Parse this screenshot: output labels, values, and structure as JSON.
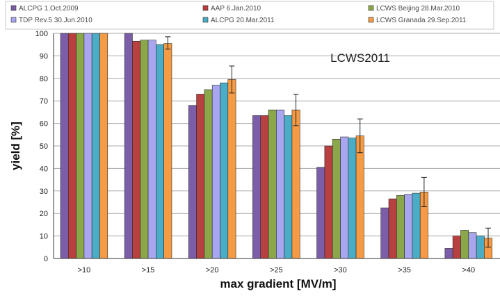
{
  "chart_data": {
    "type": "bar",
    "title": "",
    "xlabel": "max gradient [MV/m]",
    "ylabel": "yield [%]",
    "ylim": [
      0,
      100
    ],
    "y_ticks": [
      0,
      10,
      20,
      30,
      40,
      50,
      60,
      70,
      80,
      90,
      100
    ],
    "grid": true,
    "legend_position": "top",
    "annotation": "LCWS2011",
    "categories": [
      ">10",
      ">15",
      ">20",
      ">25",
      ">30",
      ">35",
      ">40"
    ],
    "series": [
      {
        "name": "ALCPG 1.Oct.2009",
        "color": "#7b5ea7",
        "values": [
          100,
          100,
          68,
          63.5,
          40.5,
          22.5,
          4.5
        ]
      },
      {
        "name": "AAP 6.Jan.2010",
        "color": "#b84040",
        "values": [
          100,
          96.5,
          73,
          63.5,
          50,
          26.5,
          10
        ]
      },
      {
        "name": "LCWS Beijing 28.Mar.2010",
        "color": "#8aa84a",
        "values": [
          100,
          97,
          75,
          66,
          53,
          28,
          12.5
        ]
      },
      {
        "name": "TDP Rev.5 30.Jun.2010",
        "color": "#a9a6ef",
        "values": [
          100,
          97,
          77,
          66,
          54,
          28.5,
          11.5
        ]
      },
      {
        "name": "ALCPG 20.Mar.2011",
        "color": "#4bacc6",
        "values": [
          100,
          95,
          78,
          63.5,
          53.5,
          29,
          10
        ]
      },
      {
        "name": "LCWS Granada 29.Sep.2011",
        "color": "#f59a45",
        "values": [
          100,
          95.5,
          79.5,
          66,
          54.5,
          29.5,
          9
        ]
      }
    ],
    "error_bars": {
      "series": "LCWS Granada 29.Sep.2011",
      "lower": [
        null,
        93,
        73.5,
        59,
        47,
        23,
        5
      ],
      "upper": [
        null,
        98.5,
        85.5,
        73,
        62,
        36,
        13.5
      ]
    }
  }
}
